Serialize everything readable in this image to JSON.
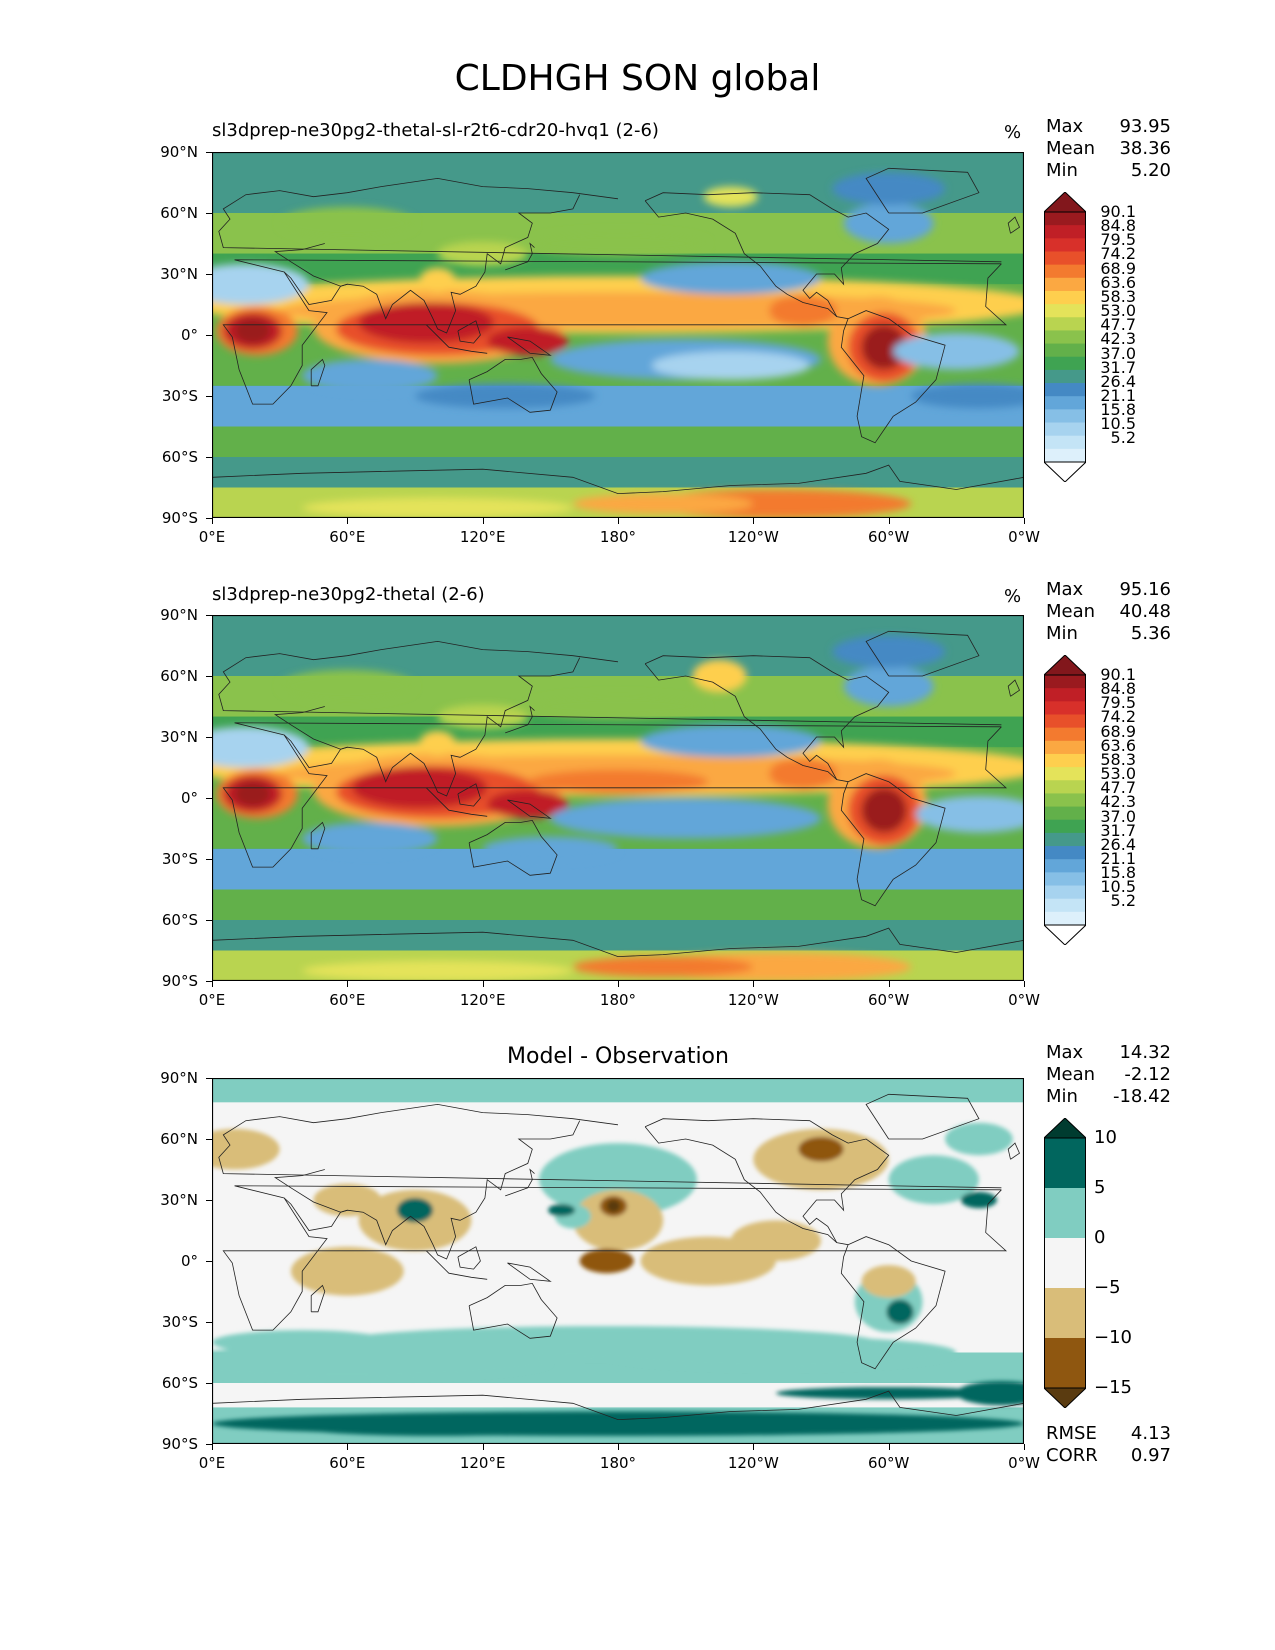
{
  "figure": {
    "title": "CLDHGH SON global"
  },
  "axes": {
    "y_ticks": [
      "90°N",
      "60°N",
      "30°N",
      "0°",
      "30°S",
      "60°S",
      "90°S"
    ],
    "x_ticks": [
      "0°E",
      "60°E",
      "120°E",
      "180°",
      "120°W",
      "60°W",
      "0°W"
    ]
  },
  "colormaps": {
    "field": [
      "#ffffff",
      "#ddf0fb",
      "#c4e4f6",
      "#a7d3ef",
      "#86bfe6",
      "#62a6d9",
      "#4489c4",
      "#45998a",
      "#3fa352",
      "#62b04a",
      "#8ac24c",
      "#b9d450",
      "#e4e35a",
      "#fecf4e",
      "#fba842",
      "#f37a2f",
      "#e8502a",
      "#d8302a",
      "#c01f26",
      "#9a1a1f",
      "#82171c"
    ],
    "diff": [
      "#5a3b10",
      "#8f5710",
      "#d9bd79",
      "#f5f5f5",
      "#80cdc1",
      "#01665e",
      "#003c30"
    ]
  },
  "panels": [
    {
      "name": "test",
      "subtitle": "sl3dprep-ne30pg2-thetal-sl-r2t6-cdr20-hvq1 (2-6)",
      "units": "%",
      "stats": {
        "max_label": "Max",
        "max": "93.95",
        "mean_label": "Mean",
        "mean": "38.36",
        "min_label": "Min",
        "min": "5.20"
      },
      "colorbar_ticks": [
        "90.1",
        "84.8",
        "79.5",
        "74.2",
        "68.9",
        "63.6",
        "58.3",
        "53.0",
        "47.7",
        "42.3",
        "37.0",
        "31.7",
        "26.4",
        "21.1",
        "15.8",
        "10.5",
        "5.2"
      ]
    },
    {
      "name": "reference",
      "subtitle": "sl3dprep-ne30pg2-thetal (2-6)",
      "units": "%",
      "stats": {
        "max_label": "Max",
        "max": "95.16",
        "mean_label": "Mean",
        "mean": "40.48",
        "min_label": "Min",
        "min": "5.36"
      },
      "colorbar_ticks": [
        "90.1",
        "84.8",
        "79.5",
        "74.2",
        "68.9",
        "63.6",
        "58.3",
        "53.0",
        "47.7",
        "42.3",
        "37.0",
        "31.7",
        "26.4",
        "21.1",
        "15.8",
        "10.5",
        "5.2"
      ]
    },
    {
      "name": "difference",
      "title": "Model - Observation",
      "stats": {
        "max_label": "Max",
        "max": "14.32",
        "mean_label": "Mean",
        "mean": "-2.12",
        "min_label": "Min",
        "min": "-18.42"
      },
      "colorbar_ticks": [
        "10",
        "5",
        "0",
        "−5",
        "−10",
        "−15"
      ],
      "rmse_label": "RMSE",
      "rmse": "4.13",
      "corr_label": "CORR",
      "corr": "0.97"
    }
  ]
}
